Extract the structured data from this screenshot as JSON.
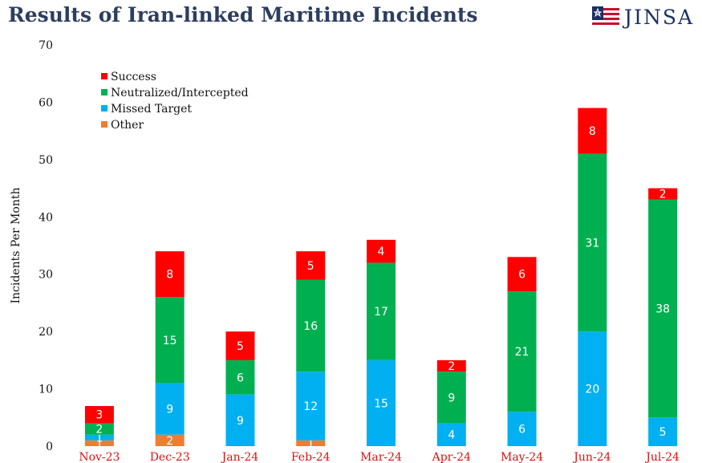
{
  "header": {
    "title": "Results of Iran-linked Maritime Incidents",
    "logo_text": "JINSA",
    "logo_icon": "flag-star-icon"
  },
  "chart_data": {
    "type": "bar",
    "stacked": true,
    "title": "Results of Iran-linked Maritime Incidents",
    "xlabel": "",
    "ylabel": "Incidents Per Month",
    "ylim": [
      0,
      70
    ],
    "yticks": [
      0,
      10,
      20,
      30,
      40,
      50,
      60,
      70
    ],
    "grid": false,
    "legend_position": "top-left",
    "categories": [
      "Nov-23",
      "Dec-23",
      "Jan-24",
      "Feb-24",
      "Mar-24",
      "Apr-24",
      "May-24",
      "Jun-24",
      "Jul-24"
    ],
    "series": [
      {
        "name": "Other",
        "color": "#ed7d31",
        "values": [
          1,
          2,
          0,
          1,
          0,
          0,
          0,
          0,
          0
        ]
      },
      {
        "name": "Missed Target",
        "color": "#00b0f0",
        "values": [
          1,
          9,
          9,
          12,
          15,
          4,
          6,
          20,
          5
        ]
      },
      {
        "name": "Neutralized/Intercepted",
        "color": "#00b050",
        "values": [
          2,
          15,
          6,
          16,
          17,
          9,
          21,
          31,
          38
        ]
      },
      {
        "name": "Success",
        "color": "#ff0000",
        "values": [
          3,
          8,
          5,
          5,
          4,
          2,
          6,
          8,
          2
        ]
      }
    ],
    "legend_order": [
      "Success",
      "Neutralized/Intercepted",
      "Missed Target",
      "Other"
    ]
  }
}
